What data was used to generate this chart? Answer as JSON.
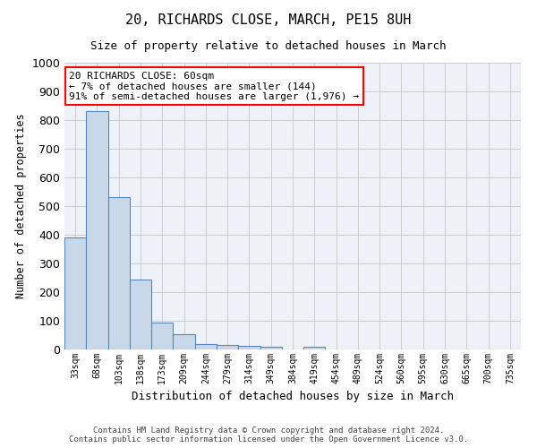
{
  "title": "20, RICHARDS CLOSE, MARCH, PE15 8UH",
  "subtitle": "Size of property relative to detached houses in March",
  "xlabel": "Distribution of detached houses by size in March",
  "ylabel": "Number of detached properties",
  "bar_color": "#c8d8e8",
  "bar_edge_color": "#5588bb",
  "bg_color": "#eef2f8",
  "categories": [
    "33sqm",
    "68sqm",
    "103sqm",
    "138sqm",
    "173sqm",
    "209sqm",
    "244sqm",
    "279sqm",
    "314sqm",
    "349sqm",
    "384sqm",
    "419sqm",
    "454sqm",
    "489sqm",
    "524sqm",
    "560sqm",
    "595sqm",
    "630sqm",
    "665sqm",
    "700sqm",
    "735sqm"
  ],
  "values": [
    390,
    830,
    530,
    243,
    95,
    52,
    20,
    17,
    14,
    8,
    0,
    10,
    0,
    0,
    0,
    0,
    0,
    0,
    0,
    0,
    0
  ],
  "ylim": [
    0,
    1000
  ],
  "yticks": [
    0,
    100,
    200,
    300,
    400,
    500,
    600,
    700,
    800,
    900,
    1000
  ],
  "annotation_text": "20 RICHARDS CLOSE: 60sqm\n← 7% of detached houses are smaller (144)\n91% of semi-detached houses are larger (1,976) →",
  "annotation_box_color": "white",
  "annotation_box_edge": "red",
  "footnote": "Contains HM Land Registry data © Crown copyright and database right 2024.\nContains public sector information licensed under the Open Government Licence v3.0.",
  "grid_color": "#cccccc"
}
